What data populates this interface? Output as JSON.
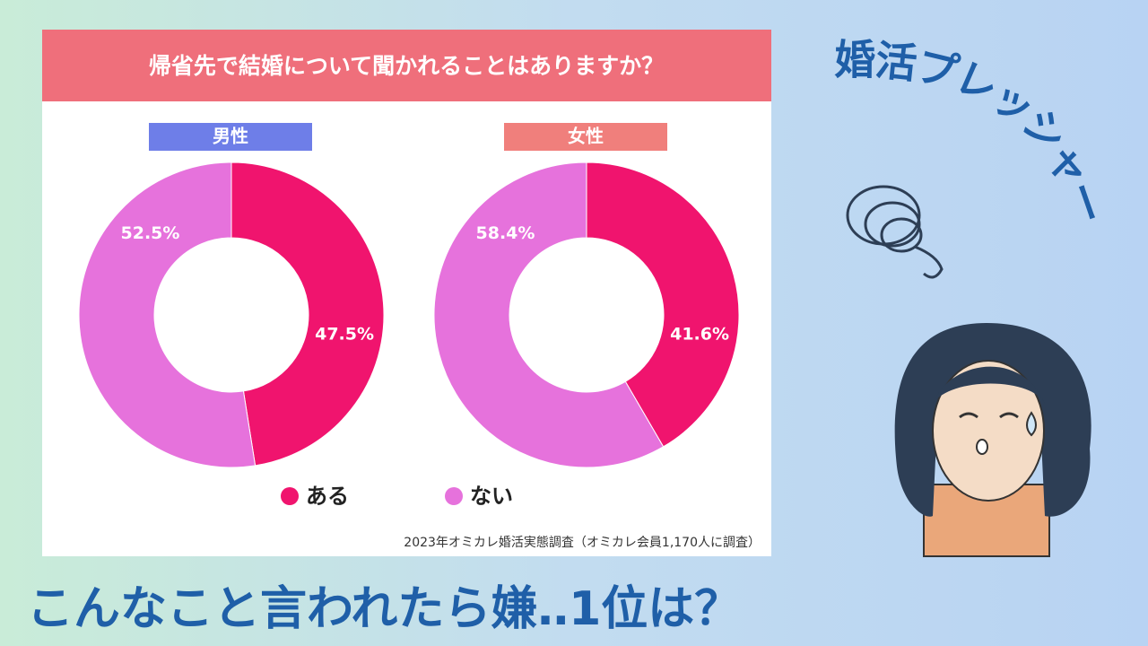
{
  "page": {
    "question": "帰省先で結婚について聞かれることはありますか？",
    "source": "2023年オミカレ婚活実態調査（オミカレ会員1,170人に調査）",
    "headline": "こんなこと言われたら嫌‥1位は？",
    "side_text": "婚活プレッシャー"
  },
  "chart_data": [
    {
      "type": "pie",
      "title": "男性",
      "title_color": "#6e7ee8",
      "donut": true,
      "categories": [
        "ある",
        "ない"
      ],
      "values": [
        47.5,
        52.5
      ],
      "value_labels": [
        "47.5%",
        "52.5%"
      ],
      "colors": [
        "#f0146e",
        "#e672dc"
      ]
    },
    {
      "type": "pie",
      "title": "女性",
      "title_color": "#f07f7c",
      "donut": true,
      "categories": [
        "ある",
        "ない"
      ],
      "values": [
        41.6,
        58.4
      ],
      "value_labels": [
        "41.6%",
        "58.4%"
      ],
      "colors": [
        "#f0146e",
        "#e672dc"
      ]
    }
  ]
}
